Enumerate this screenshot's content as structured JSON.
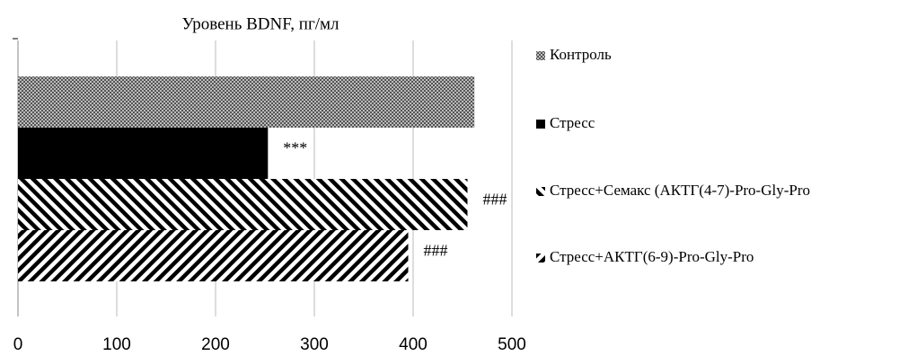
{
  "chart_data": {
    "type": "bar",
    "orientation": "horizontal",
    "title": "Уровень BDNF, пг/мл",
    "series": [
      {
        "name": "Контроль",
        "color": "#999999",
        "pattern": "dots",
        "values": [
          462
        ]
      },
      {
        "name": "Стресс",
        "color": "#000000",
        "pattern": "solid",
        "values": [
          253
        ],
        "annotation": "***"
      },
      {
        "name": "Стресс+Семакс (АКТГ(4-7)-Pro-Gly-Pro",
        "color": "#000000",
        "pattern": "hatch-down",
        "values": [
          455
        ],
        "annotation": "###"
      },
      {
        "name": "Стресс+АКТГ(6-9)-Pro-Gly-Pro",
        "color": "#000000",
        "pattern": "hatch-up",
        "values": [
          395
        ],
        "annotation": "###"
      }
    ],
    "xlim": [
      0,
      500
    ],
    "xticks": [
      0,
      100,
      200,
      300,
      400,
      500
    ],
    "grid": true,
    "legend": "right"
  }
}
